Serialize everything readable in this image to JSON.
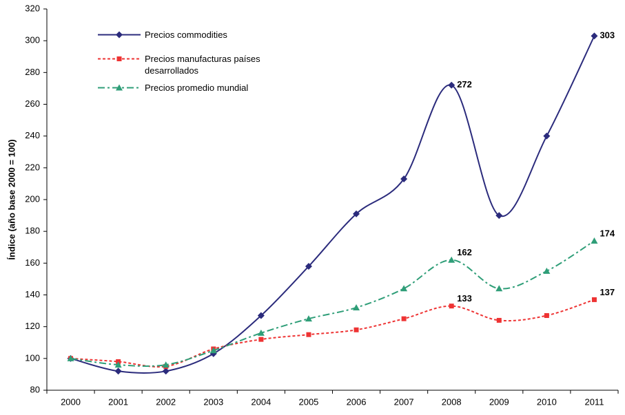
{
  "chart_data": {
    "type": "line",
    "y_label": "Índice (año base 2000 = 100)",
    "categories": [
      "2000",
      "2001",
      "2002",
      "2003",
      "2004",
      "2005",
      "2006",
      "2007",
      "2008",
      "2009",
      "2010",
      "2011"
    ],
    "ylim": [
      80,
      320
    ],
    "yticks": [
      80,
      100,
      120,
      140,
      160,
      180,
      200,
      220,
      240,
      260,
      280,
      300,
      320
    ],
    "grid": false,
    "series": [
      {
        "name": "Precios commodities",
        "color": "#2b2b7c",
        "marker": "diamond",
        "dash": "solid",
        "values": [
          100,
          92,
          92,
          103,
          127,
          158,
          191,
          213,
          272,
          190,
          240,
          303
        ],
        "value_labels": [
          null,
          null,
          null,
          null,
          null,
          null,
          null,
          null,
          "272",
          null,
          null,
          "303"
        ]
      },
      {
        "name": "Precios manufacturas países desarrollados",
        "color": "#ee3333",
        "marker": "square",
        "dash": "dotted",
        "values": [
          100,
          98,
          95,
          106,
          112,
          115,
          118,
          125,
          133,
          124,
          127,
          137
        ],
        "value_labels": [
          null,
          null,
          null,
          null,
          null,
          null,
          null,
          null,
          "133",
          null,
          null,
          "137"
        ]
      },
      {
        "name": "Precios promedio mundial",
        "color": "#2f9e78",
        "marker": "triangle",
        "dash": "dashdot",
        "values": [
          100,
          96,
          96,
          105,
          116,
          125,
          132,
          144,
          162,
          144,
          155,
          174
        ],
        "value_labels": [
          null,
          null,
          null,
          null,
          null,
          null,
          null,
          null,
          "162",
          null,
          null,
          "174"
        ]
      }
    ]
  }
}
